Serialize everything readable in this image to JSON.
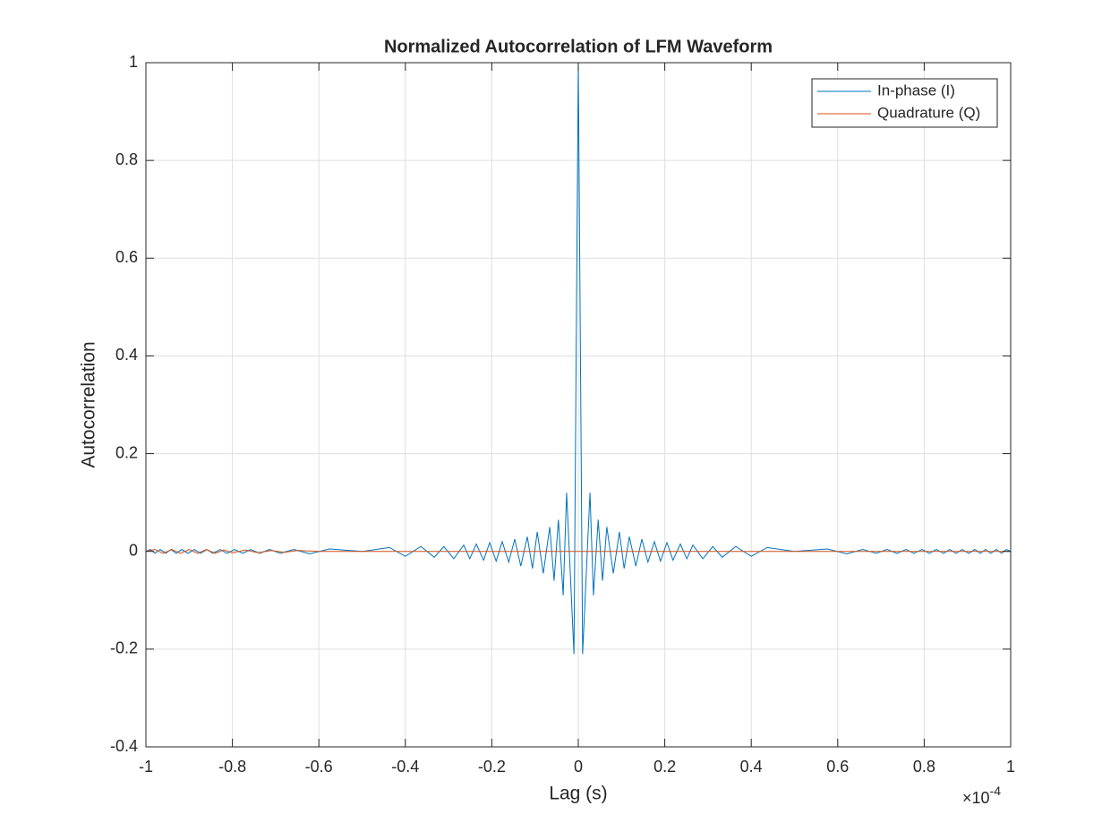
{
  "chart_data": {
    "type": "line",
    "title": "Normalized Autocorrelation of LFM Waveform",
    "x_label": "Lag (s)",
    "y_label": "Autocorrelation",
    "x_multiplier": {
      "base": "×10",
      "exponent": "-4"
    },
    "xlim": [
      -1,
      1
    ],
    "ylim": [
      -0.4,
      1
    ],
    "xticks": [
      -1,
      -0.8,
      -0.6,
      -0.4,
      -0.2,
      0,
      0.2,
      0.4,
      0.6,
      0.8,
      1
    ],
    "yticks": [
      -0.4,
      -0.2,
      0,
      0.2,
      0.4,
      0.6,
      0.8,
      1
    ],
    "grid": true,
    "legend": "top-right",
    "series": [
      {
        "name": "In-phase (I)",
        "color": "#0072BD",
        "x": [
          -1,
          -0.99,
          -0.979,
          -0.967,
          -0.954,
          -0.942,
          -0.93,
          -0.917,
          -0.903,
          -0.888,
          -0.874,
          -0.859,
          -0.845,
          -0.828,
          -0.812,
          -0.795,
          -0.776,
          -0.758,
          -0.737,
          -0.714,
          -0.689,
          -0.658,
          -0.621,
          -0.576,
          -0.499,
          -0.437,
          -0.4,
          -0.364,
          -0.333,
          -0.311,
          -0.288,
          -0.265,
          -0.251,
          -0.236,
          -0.219,
          -0.205,
          -0.19,
          -0.176,
          -0.161,
          -0.147,
          -0.133,
          -0.118,
          -0.106,
          -0.095,
          -0.081,
          -0.066,
          -0.056,
          -0.046,
          -0.035,
          -0.027,
          -0.01,
          0,
          0.01,
          0.027,
          0.035,
          0.046,
          0.056,
          0.066,
          0.081,
          0.095,
          0.106,
          0.118,
          0.133,
          0.147,
          0.161,
          0.176,
          0.19,
          0.205,
          0.219,
          0.236,
          0.251,
          0.265,
          0.288,
          0.311,
          0.333,
          0.364,
          0.4,
          0.437,
          0.499,
          0.576,
          0.621,
          0.658,
          0.689,
          0.714,
          0.737,
          0.758,
          0.776,
          0.795,
          0.812,
          0.828,
          0.845,
          0.859,
          0.874,
          0.888,
          0.903,
          0.917,
          0.93,
          0.942,
          0.954,
          0.967,
          0.979,
          0.99,
          1
        ],
        "values": [
          0,
          0.004,
          -0.004,
          0.004,
          -0.004,
          0.004,
          -0.004,
          0.004,
          -0.004,
          0.004,
          -0.004,
          0.004,
          -0.004,
          0.004,
          -0.004,
          0.004,
          -0.004,
          0.004,
          -0.004,
          0.004,
          -0.004,
          0.004,
          -0.005,
          0.005,
          0,
          0.008,
          -0.01,
          0.01,
          -0.012,
          0.01,
          -0.015,
          0.013,
          -0.015,
          0.015,
          -0.018,
          0.018,
          -0.02,
          0.02,
          -0.022,
          0.025,
          -0.03,
          0.03,
          -0.035,
          0.04,
          -0.045,
          0.05,
          -0.06,
          0.065,
          -0.09,
          0.12,
          -0.21,
          1,
          -0.21,
          0.12,
          -0.09,
          0.065,
          -0.06,
          0.05,
          -0.045,
          0.04,
          -0.035,
          0.03,
          -0.03,
          0.025,
          -0.022,
          0.02,
          -0.02,
          0.018,
          -0.018,
          0.015,
          -0.015,
          0.013,
          -0.015,
          0.01,
          -0.012,
          0.01,
          -0.01,
          0.008,
          0,
          0.005,
          -0.005,
          0.004,
          -0.004,
          0.004,
          -0.004,
          0.004,
          -0.004,
          0.004,
          -0.004,
          0.004,
          -0.004,
          0.004,
          -0.004,
          0.004,
          -0.004,
          0.004,
          -0.004,
          0.004,
          -0.004,
          0.004,
          -0.004,
          0.004,
          0
        ]
      },
      {
        "name": "Quadrature (Q)",
        "color": "#D95319",
        "x": [
          -1,
          -0.98,
          -0.96,
          -0.94,
          -0.92,
          -0.9,
          -0.88,
          -0.86,
          -0.84,
          -0.82,
          -0.8,
          -0.77,
          -0.74,
          -0.71,
          -0.68,
          -0.65,
          -0.6,
          0,
          0.6,
          1
        ],
        "values": [
          0,
          0.004,
          -0.004,
          0.004,
          -0.004,
          0.004,
          -0.004,
          0.004,
          -0.004,
          0.003,
          -0.003,
          0.003,
          -0.003,
          0.002,
          -0.002,
          0.002,
          0,
          0,
          0,
          0
        ]
      }
    ]
  }
}
